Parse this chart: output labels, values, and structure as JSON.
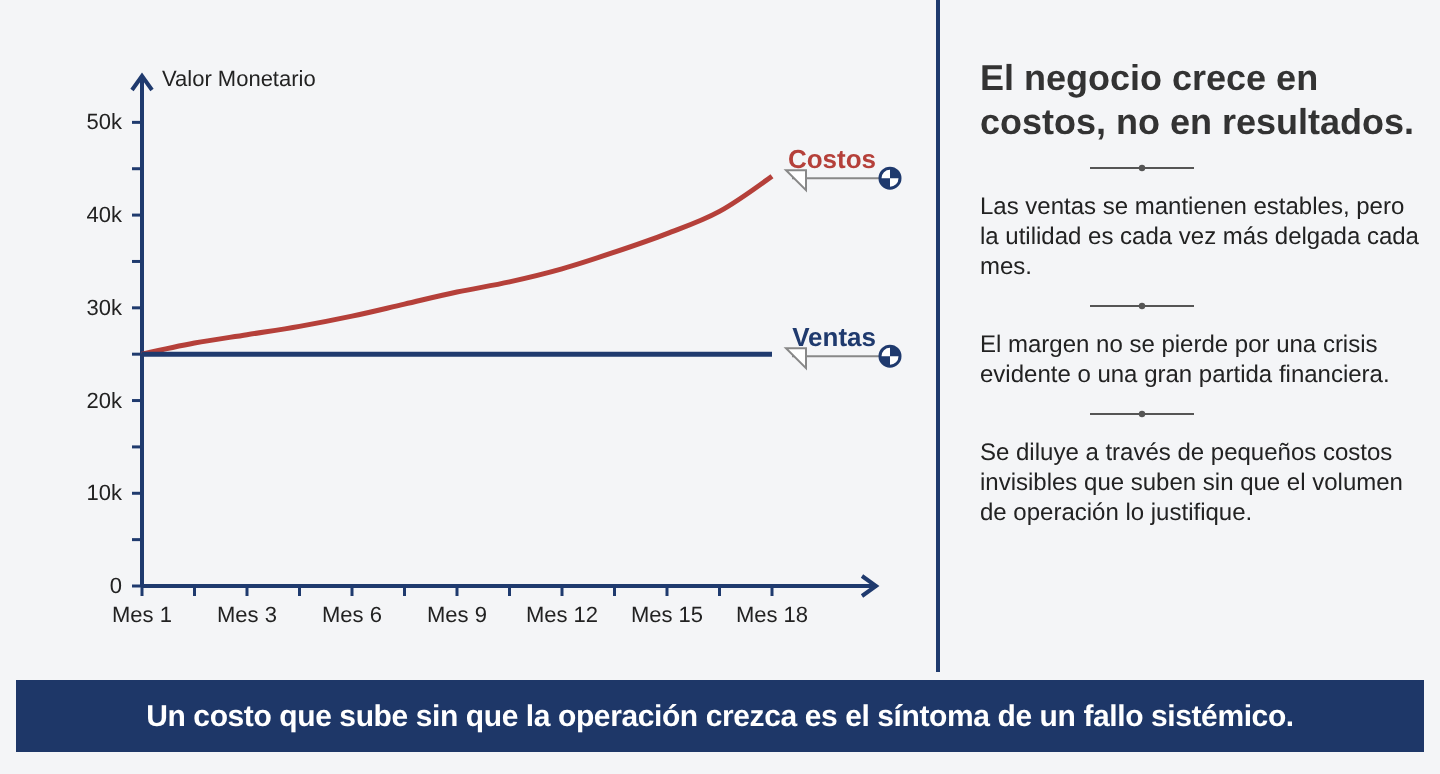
{
  "chart_data": {
    "type": "line",
    "title": "El negocio crece en costos, no en resultados.",
    "ylabel": "Valor Monetario",
    "categories": [
      "Mes 1",
      null,
      "Mes 3",
      null,
      "Mes 6",
      null,
      "Mes 9",
      null,
      "Mes 12",
      null,
      "Mes 15",
      null,
      "Mes 18"
    ],
    "series": [
      {
        "name": "Costos",
        "color": "#b5403a",
        "values": [
          25000,
          26200,
          27100,
          28000,
          29100,
          30400,
          31700,
          32800,
          34200,
          36000,
          38000,
          40400,
          44200
        ]
      },
      {
        "name": "Ventas",
        "color": "#1f3a6e",
        "values": [
          25000,
          25000,
          25000,
          25000,
          25000,
          25000,
          25000,
          25000,
          25000,
          25000,
          25000,
          25000,
          25000
        ]
      }
    ],
    "ylim": [
      0,
      55000
    ],
    "yticks": [
      0,
      {
        "value": 5000,
        "label": null
      },
      {
        "value": 10000,
        "label": "10k"
      },
      {
        "value": 15000,
        "label": null
      },
      {
        "value": 20000,
        "label": "20k"
      },
      {
        "value": 25000,
        "label": null
      },
      {
        "value": 30000,
        "label": "30k"
      },
      {
        "value": 35000,
        "label": null
      },
      {
        "value": 40000,
        "label": "40k"
      },
      {
        "value": 45000,
        "label": null
      },
      {
        "value": 50000,
        "label": "50k"
      }
    ],
    "grid": false,
    "annotations": [
      "Las ventas se mantienen estables, pero la utilidad es cada vez más delgada cada mes.",
      "El margen no se pierde por una crisis evidente o una gran partida financiera.",
      "Se diluye a través de pequeños costos invisibles que suben sin que el volumen de operación lo justifique.",
      "Un costo que sube sin que la operación crezca es el síntoma de un fallo sistémico."
    ]
  }
}
